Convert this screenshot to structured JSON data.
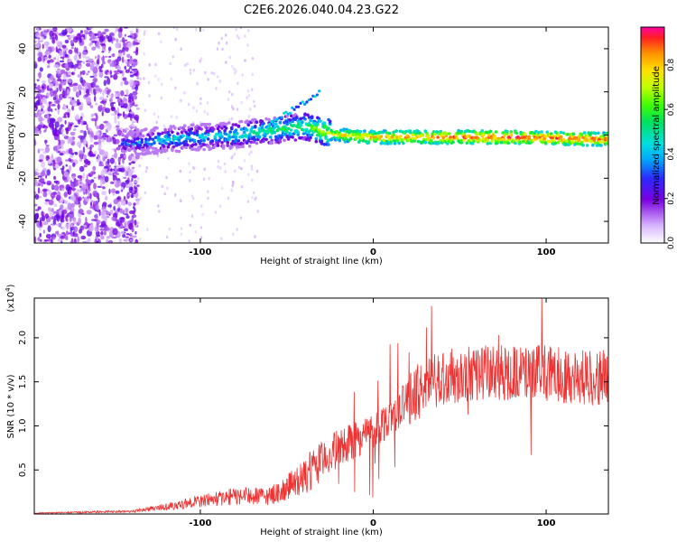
{
  "title": "C2E6.2026.040.04.23.G22",
  "chart_data": [
    {
      "type": "heatmap",
      "xlabel": "Height of straight line (km)",
      "ylabel": "Frequency (Hz)",
      "xlim": [
        -196,
        136
      ],
      "ylim": [
        -50,
        50
      ],
      "xticks": [
        -100,
        0,
        100
      ],
      "xtick_labels": [
        "-100",
        "0",
        "100"
      ],
      "yticks": [
        -40,
        -20,
        0,
        20,
        40
      ],
      "ytick_labels": [
        "-40",
        "-20",
        "0",
        "20",
        "40"
      ],
      "colorbar": {
        "label": "Normalized spectral amplitude",
        "range": [
          0,
          0.97
        ],
        "ticks": [
          0,
          0.2,
          0.4,
          0.6,
          0.8
        ],
        "tick_labels": [
          "0.0",
          "0.2",
          "0.4",
          "0.6",
          "0.8"
        ]
      },
      "trace": [
        {
          "x": -140,
          "freq": -4,
          "amp": 0.35
        },
        {
          "x": -120,
          "freq": -2,
          "amp": 0.45
        },
        {
          "x": -100,
          "freq": -1,
          "amp": 0.45
        },
        {
          "x": -80,
          "freq": 0,
          "amp": 0.5
        },
        {
          "x": -60,
          "freq": 2,
          "amp": 0.55
        },
        {
          "x": -40,
          "freq": 4,
          "amp": 0.6
        },
        {
          "x": -30,
          "freq": 2,
          "amp": 0.7
        },
        {
          "x": -20,
          "freq": 0,
          "amp": 0.8
        },
        {
          "x": 0,
          "freq": -1,
          "amp": 0.85
        },
        {
          "x": 40,
          "freq": -1,
          "amp": 0.9
        },
        {
          "x": 80,
          "freq": -1,
          "amp": 0.95
        },
        {
          "x": 136,
          "freq": -2,
          "amp": 0.9
        }
      ]
    },
    {
      "type": "line",
      "xlabel": "Height of straight line (km)",
      "ylabel": "SNR (10 * v/v)",
      "y_scale_note": "(x10⁴)",
      "y_scale_base": "(x10",
      "y_scale_exp": "4",
      "y_scale_close": ")",
      "xlim": [
        -196,
        136
      ],
      "ylim": [
        0,
        2.45
      ],
      "xticks": [
        -100,
        0,
        100
      ],
      "xtick_labels": [
        "-100",
        "0",
        "100"
      ],
      "yticks": [
        0.5,
        1.0,
        1.5,
        2.0
      ],
      "ytick_labels": [
        "0.5",
        "1.0",
        "1.5",
        "2.0"
      ],
      "color": "#ee3333",
      "envelope": [
        {
          "x": -196,
          "y": 0.01
        },
        {
          "x": -140,
          "y": 0.03
        },
        {
          "x": -120,
          "y": 0.08
        },
        {
          "x": -100,
          "y": 0.15
        },
        {
          "x": -80,
          "y": 0.2
        },
        {
          "x": -60,
          "y": 0.2
        },
        {
          "x": -50,
          "y": 0.3
        },
        {
          "x": -40,
          "y": 0.4
        },
        {
          "x": -30,
          "y": 0.6
        },
        {
          "x": -20,
          "y": 0.75
        },
        {
          "x": -10,
          "y": 0.85
        },
        {
          "x": 0,
          "y": 0.95
        },
        {
          "x": 10,
          "y": 1.1
        },
        {
          "x": 20,
          "y": 1.3
        },
        {
          "x": 30,
          "y": 1.45
        },
        {
          "x": 40,
          "y": 1.55
        },
        {
          "x": 60,
          "y": 1.6
        },
        {
          "x": 80,
          "y": 1.6
        },
        {
          "x": 100,
          "y": 1.6
        },
        {
          "x": 120,
          "y": 1.55
        },
        {
          "x": 136,
          "y": 1.55
        }
      ]
    }
  ]
}
